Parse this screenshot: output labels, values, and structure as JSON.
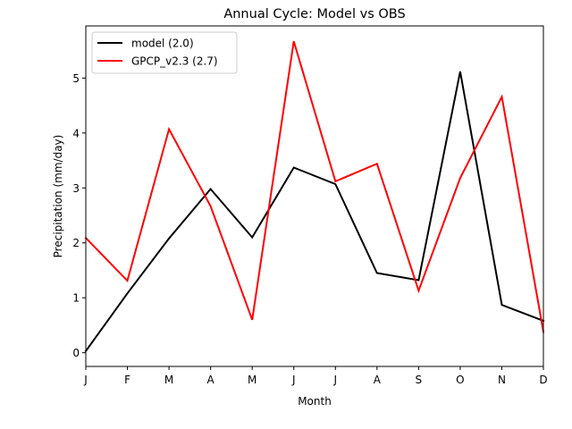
{
  "chart_data": {
    "type": "line",
    "title": "Annual Cycle: Model vs OBS",
    "xlabel": "Month",
    "ylabel": "Precipitation (mm/day)",
    "categories": [
      "J",
      "F",
      "M",
      "A",
      "M",
      "J",
      "J",
      "A",
      "S",
      "O",
      "N",
      "D"
    ],
    "ylim": [
      -0.25,
      5.95
    ],
    "yticks": [
      0,
      1,
      2,
      3,
      4,
      5
    ],
    "grid": false,
    "legend_position": "top-left",
    "series": [
      {
        "name": "model (2.0)",
        "color": "#000000",
        "values": [
          0.03,
          1.08,
          2.08,
          2.98,
          2.1,
          3.37,
          3.07,
          1.45,
          1.32,
          5.12,
          0.87,
          0.58
        ]
      },
      {
        "name": "GPCP_v2.3 (2.7)",
        "color": "#ff0000",
        "values": [
          2.09,
          1.31,
          4.07,
          2.67,
          0.6,
          5.67,
          3.12,
          3.44,
          1.13,
          3.18,
          4.66,
          0.38
        ]
      }
    ]
  }
}
